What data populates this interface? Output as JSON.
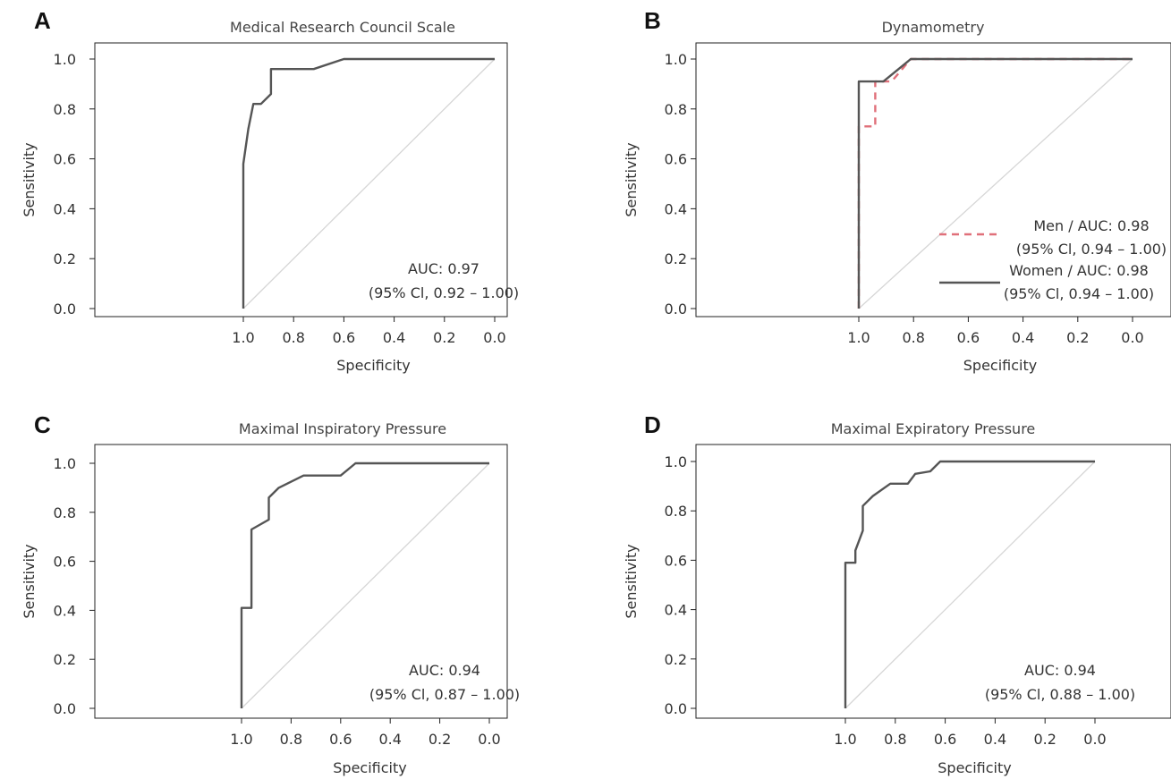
{
  "chart_data": [
    {
      "panel": "A",
      "type": "line",
      "title": "Medical Research Council Scale",
      "xlabel": "Specificity",
      "ylabel": "Sensitivity",
      "x_reversed": true,
      "xlim": [
        1.0,
        0.0
      ],
      "ylim": [
        0.0,
        1.0
      ],
      "xticks": [
        "1.0",
        "0.8",
        "0.6",
        "0.4",
        "0.2",
        "0.0"
      ],
      "yticks": [
        "0.0",
        "0.2",
        "0.4",
        "0.6",
        "0.8",
        "1.0"
      ],
      "grid": false,
      "annotation": [
        "AUC: 0.97",
        "(95% Cl, 0.92 – 1.00)"
      ],
      "series": [
        {
          "color": "#555555",
          "dash": "solid",
          "points": [
            [
              1.0,
              0.0
            ],
            [
              1.0,
              0.58
            ],
            [
              0.98,
              0.72
            ],
            [
              0.96,
              0.82
            ],
            [
              0.93,
              0.82
            ],
            [
              0.89,
              0.86
            ],
            [
              0.89,
              0.96
            ],
            [
              0.72,
              0.96
            ],
            [
              0.6,
              1.0
            ],
            [
              0.0,
              1.0
            ]
          ]
        }
      ]
    },
    {
      "panel": "B",
      "type": "line",
      "title": "Dynamometry",
      "xlabel": "Specificity",
      "ylabel": "Sensitivity",
      "x_reversed": true,
      "xlim": [
        1.0,
        0.0
      ],
      "ylim": [
        0.0,
        1.0
      ],
      "xticks": [
        "1.0",
        "0.8",
        "0.6",
        "0.4",
        "0.2",
        "0.0"
      ],
      "yticks": [
        "0.0",
        "0.2",
        "0.4",
        "0.6",
        "0.8",
        "1.0"
      ],
      "grid": false,
      "legend_position": "lower-right",
      "series": [
        {
          "name": "Men / AUC: 0.98",
          "ci": "(95% Cl, 0.94 – 1.00)",
          "color": "#e0707a",
          "dash": "dashed",
          "points": [
            [
              1.0,
              0.0
            ],
            [
              1.0,
              0.73
            ],
            [
              0.94,
              0.73
            ],
            [
              0.94,
              0.91
            ],
            [
              0.88,
              0.91
            ],
            [
              0.81,
              1.0
            ],
            [
              0.0,
              1.0
            ]
          ]
        },
        {
          "name": "Women / AUC: 0.98",
          "ci": "(95% Cl, 0.94 – 1.00)",
          "color": "#555555",
          "dash": "solid",
          "points": [
            [
              1.0,
              0.0
            ],
            [
              1.0,
              0.91
            ],
            [
              0.91,
              0.91
            ],
            [
              0.81,
              1.0
            ],
            [
              0.0,
              1.0
            ]
          ]
        }
      ]
    },
    {
      "panel": "C",
      "type": "line",
      "title": "Maximal Inspiratory Pressure",
      "xlabel": "Specificity",
      "ylabel": "Sensitivity",
      "x_reversed": true,
      "xlim": [
        1.0,
        0.0
      ],
      "ylim": [
        0.0,
        1.0
      ],
      "xticks": [
        "1.0",
        "0.8",
        "0.6",
        "0.4",
        "0.2",
        "0.0"
      ],
      "yticks": [
        "0.0",
        "0.2",
        "0.4",
        "0.6",
        "0.8",
        "1.0"
      ],
      "grid": false,
      "annotation": [
        "AUC: 0.94",
        "(95% Cl, 0.87 – 1.00)"
      ],
      "series": [
        {
          "color": "#555555",
          "dash": "solid",
          "points": [
            [
              1.0,
              0.0
            ],
            [
              1.0,
              0.41
            ],
            [
              0.96,
              0.41
            ],
            [
              0.96,
              0.73
            ],
            [
              0.89,
              0.77
            ],
            [
              0.89,
              0.86
            ],
            [
              0.85,
              0.9
            ],
            [
              0.75,
              0.95
            ],
            [
              0.6,
              0.95
            ],
            [
              0.54,
              1.0
            ],
            [
              0.0,
              1.0
            ]
          ]
        }
      ]
    },
    {
      "panel": "D",
      "type": "line",
      "title": "Maximal Expiratory Pressure",
      "xlabel": "Specificity",
      "ylabel": "Sensitivity",
      "x_reversed": true,
      "xlim": [
        1.0,
        0.0
      ],
      "ylim": [
        0.0,
        1.0
      ],
      "xticks": [
        "1.0",
        "0.8",
        "0.6",
        "0.4",
        "0.2",
        "0.0"
      ],
      "yticks": [
        "0.0",
        "0.2",
        "0.4",
        "0.6",
        "0.8",
        "1.0"
      ],
      "grid": false,
      "annotation": [
        "AUC: 0.94",
        "(95% Cl, 0.88 – 1.00)"
      ],
      "series": [
        {
          "color": "#555555",
          "dash": "solid",
          "points": [
            [
              1.0,
              0.0
            ],
            [
              1.0,
              0.59
            ],
            [
              0.96,
              0.59
            ],
            [
              0.96,
              0.64
            ],
            [
              0.93,
              0.72
            ],
            [
              0.93,
              0.82
            ],
            [
              0.89,
              0.86
            ],
            [
              0.82,
              0.91
            ],
            [
              0.75,
              0.91
            ],
            [
              0.72,
              0.95
            ],
            [
              0.66,
              0.96
            ],
            [
              0.62,
              1.0
            ],
            [
              0.0,
              1.0
            ]
          ]
        }
      ]
    }
  ]
}
